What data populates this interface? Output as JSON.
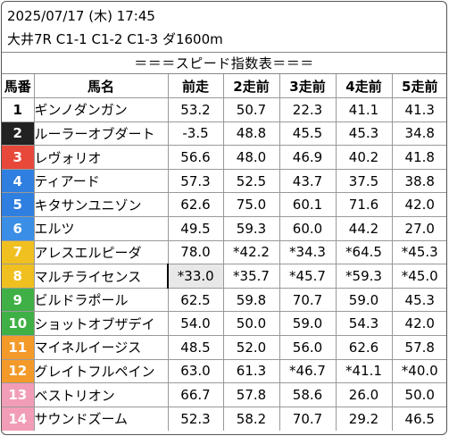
{
  "header": {
    "datetime": "2025/07/17 (木) 17:45",
    "race": "大井7R C1-1 C1-2 C1-3 ダ1600m"
  },
  "title": "＝＝＝スピード指数表＝＝＝",
  "columns": [
    "馬番",
    "馬名",
    "前走",
    "2走前",
    "3走前",
    "4走前",
    "5走前"
  ],
  "gate_colors": {
    "1": "#ffffff",
    "2": "#222222",
    "3": "#e8483a",
    "4": "#2f7fe0",
    "5": "#f0c020",
    "6": "#3fb045",
    "7": "#f39a2a",
    "8": "#f29db7"
  },
  "rows": [
    {
      "no": "1",
      "name": "ギンノダンガン",
      "v": [
        "53.2",
        "50.7",
        "22.3",
        "41.1",
        "41.3"
      ],
      "gate": "#ffffff",
      "fg": "#000000"
    },
    {
      "no": "2",
      "name": "ルーラーオブダート",
      "v": [
        "-3.5",
        "48.8",
        "45.5",
        "45.3",
        "34.8"
      ],
      "gate": "#222222",
      "fg": "#ffffff"
    },
    {
      "no": "3",
      "name": "レヴォリオ",
      "v": [
        "56.6",
        "48.0",
        "46.9",
        "40.2",
        "41.8"
      ],
      "gate": "#e8483a",
      "fg": "#ffffff"
    },
    {
      "no": "4",
      "name": "ティアード",
      "v": [
        "57.3",
        "52.5",
        "43.7",
        "37.5",
        "38.8"
      ],
      "gate": "#2f7fe0",
      "fg": "#ffffff"
    },
    {
      "no": "5",
      "name": "キタサンユニゾン",
      "v": [
        "62.6",
        "75.0",
        "60.1",
        "71.6",
        "42.0"
      ],
      "gate": "#2f7fe0",
      "fg": "#ffffff"
    },
    {
      "no": "6",
      "name": "エルツ",
      "v": [
        "49.5",
        "59.3",
        "60.0",
        "44.2",
        "27.0"
      ],
      "gate": "#3a8ee6",
      "fg": "#ffffff"
    },
    {
      "no": "7",
      "name": "アレスエルピーダ",
      "v": [
        "78.0",
        "*42.2",
        "*34.3",
        "*64.5",
        "*45.3"
      ],
      "gate": "#f0c020",
      "fg": "#ffffff"
    },
    {
      "no": "8",
      "name": "マルチライセンス",
      "v": [
        "*33.0",
        "*35.7",
        "*45.7",
        "*59.3",
        "*45.0"
      ],
      "gate": "#f0c020",
      "fg": "#ffffff"
    },
    {
      "no": "9",
      "name": "ビルドラポール",
      "v": [
        "62.5",
        "59.8",
        "70.7",
        "59.0",
        "45.3"
      ],
      "gate": "#3fb045",
      "fg": "#ffffff"
    },
    {
      "no": "10",
      "name": "ショットオブザデイ",
      "v": [
        "54.0",
        "50.0",
        "59.0",
        "54.3",
        "42.0"
      ],
      "gate": "#3fb045",
      "fg": "#ffffff"
    },
    {
      "no": "11",
      "name": "マイネルイージス",
      "v": [
        "48.5",
        "52.0",
        "56.0",
        "62.6",
        "57.8"
      ],
      "gate": "#f39a2a",
      "fg": "#ffffff"
    },
    {
      "no": "12",
      "name": "グレイトフルペイン",
      "v": [
        "63.0",
        "61.3",
        "*46.7",
        "*41.1",
        "*40.0"
      ],
      "gate": "#f39a2a",
      "fg": "#ffffff"
    },
    {
      "no": "13",
      "name": "ベストリオン",
      "v": [
        "66.7",
        "57.8",
        "58.6",
        "26.0",
        "50.0"
      ],
      "gate": "#f29db7",
      "fg": "#ffffff"
    },
    {
      "no": "14",
      "name": "サウンドズーム",
      "v": [
        "52.3",
        "58.2",
        "70.7",
        "29.2",
        "46.5"
      ],
      "gate": "#f29db7",
      "fg": "#ffffff"
    }
  ],
  "highlight": {
    "row": 7,
    "col": 0
  }
}
